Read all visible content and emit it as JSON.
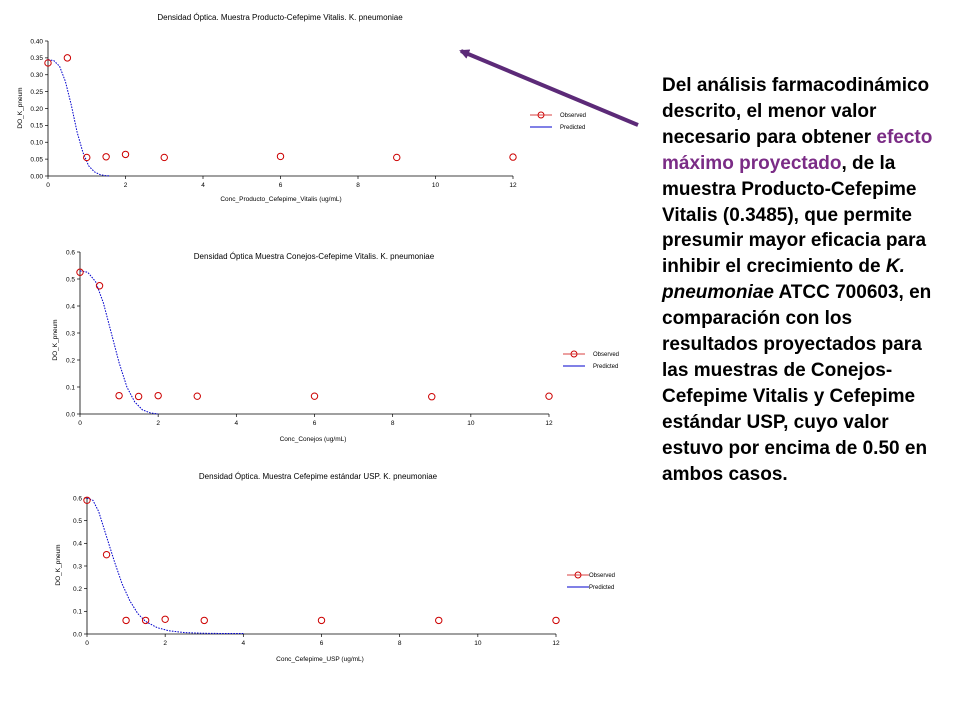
{
  "colors": {
    "observed": "#cc0000",
    "predicted": "#0000cc",
    "arrow": "#5c2a78",
    "highlight": "#7b2c86"
  },
  "legend": {
    "observed": "Observed",
    "predicted": "Predicted",
    "placement": "right"
  },
  "chart_data": [
    {
      "type": "scatter",
      "title": "Densidad Óptica. Muestra Producto-Cefepime Vitalis. K. pneumoniae",
      "xlabel": "Conc_Producto_Cefepime_Vitalis (ug/mL)",
      "ylabel": "DO_K_pneum",
      "xlim": [
        0,
        12
      ],
      "ylim": [
        0,
        0.4
      ],
      "xticks": [
        "0",
        "2",
        "4",
        "6",
        "8",
        "10",
        "12"
      ],
      "yticks": [
        "0.00",
        "0.05",
        "0.10",
        "0.15",
        "0.20",
        "0.25",
        "0.30",
        "0.35",
        "0.40"
      ],
      "grid": false,
      "series": [
        {
          "name": "Observed",
          "x": [
            0,
            0.5,
            1,
            1.5,
            2,
            3,
            6,
            9,
            12
          ],
          "y": [
            0.335,
            0.35,
            0.055,
            0.057,
            0.064,
            0.055,
            0.058,
            0.055,
            0.056
          ]
        },
        {
          "name": "Predicted",
          "x": [
            0,
            0.15,
            0.3,
            0.45,
            0.6,
            0.75,
            0.9,
            1.05,
            1.2,
            1.35,
            1.5,
            1.6
          ],
          "y": [
            0.345,
            0.342,
            0.325,
            0.28,
            0.21,
            0.13,
            0.07,
            0.03,
            0.012,
            0.004,
            0.001,
            0
          ]
        }
      ]
    },
    {
      "type": "scatter",
      "title": "Densidad Óptica Muestra Conejos-Cefepime Vitalis. K. pneumoniae",
      "xlabel": "Conc_Conejos (ug/mL)",
      "ylabel": "DO_K_pneum",
      "xlim": [
        0,
        12
      ],
      "ylim": [
        0,
        0.6
      ],
      "xticks": [
        "0",
        "2",
        "4",
        "6",
        "8",
        "10",
        "12"
      ],
      "yticks": [
        "0.0",
        "0.1",
        "0.2",
        "0.3",
        "0.4",
        "0.5",
        "0.6"
      ],
      "grid": false,
      "series": [
        {
          "name": "Observed",
          "x": [
            0,
            0.5,
            1,
            1.5,
            2,
            3,
            6,
            9,
            12
          ],
          "y": [
            0.525,
            0.475,
            0.068,
            0.065,
            0.068,
            0.066,
            0.066,
            0.064,
            0.066
          ]
        },
        {
          "name": "Predicted",
          "x": [
            0,
            0.2,
            0.4,
            0.6,
            0.8,
            1.0,
            1.2,
            1.4,
            1.6,
            1.8,
            2.0
          ],
          "y": [
            0.53,
            0.525,
            0.49,
            0.41,
            0.3,
            0.19,
            0.1,
            0.045,
            0.015,
            0.004,
            0
          ]
        }
      ]
    },
    {
      "type": "scatter",
      "title": "Densidad Óptica. Muestra Cefepime estándar USP. K. pneumoniae",
      "xlabel": "Conc_Cefepime_USP (ug/mL)",
      "ylabel": "DO_K_pneum",
      "xlim": [
        0,
        12
      ],
      "ylim": [
        0,
        0.6
      ],
      "xticks": [
        "0",
        "2",
        "4",
        "6",
        "8",
        "10",
        "12"
      ],
      "yticks": [
        "0.0",
        "0.1",
        "0.2",
        "0.3",
        "0.4",
        "0.5",
        "0.6"
      ],
      "grid": false,
      "series": [
        {
          "name": "Observed",
          "x": [
            0,
            0.5,
            1,
            1.5,
            2,
            3,
            6,
            9,
            12
          ],
          "y": [
            0.59,
            0.35,
            0.06,
            0.06,
            0.065,
            0.06,
            0.06,
            0.06,
            0.06
          ]
        },
        {
          "name": "Predicted",
          "x": [
            0,
            0.15,
            0.3,
            0.5,
            0.7,
            0.9,
            1.1,
            1.3,
            1.5,
            1.8,
            2.1,
            2.5,
            3.0,
            3.5,
            4.0
          ],
          "y": [
            0.6,
            0.59,
            0.54,
            0.43,
            0.32,
            0.22,
            0.145,
            0.09,
            0.055,
            0.028,
            0.014,
            0.006,
            0.003,
            0.002,
            0.002
          ]
        }
      ]
    }
  ],
  "note": {
    "p1": "Del análisis farmacodinámico descrito, el menor valor necesario para obtener ",
    "p2": "efecto máximo proyectado",
    "p3": ", de la muestra Producto-Cefepime Vitalis (0.3485), que permite presumir mayor eficacia para inhibir el crecimiento de ",
    "p4": "K. pneumoniae",
    "p5": " ATCC 700603, en comparación con los resultados proyectados para las muestras de Conejos-Cefepime Vitalis y Cefepime estándar USP, cuyo valor estuvo por encima de 0.50 en ambos casos."
  }
}
